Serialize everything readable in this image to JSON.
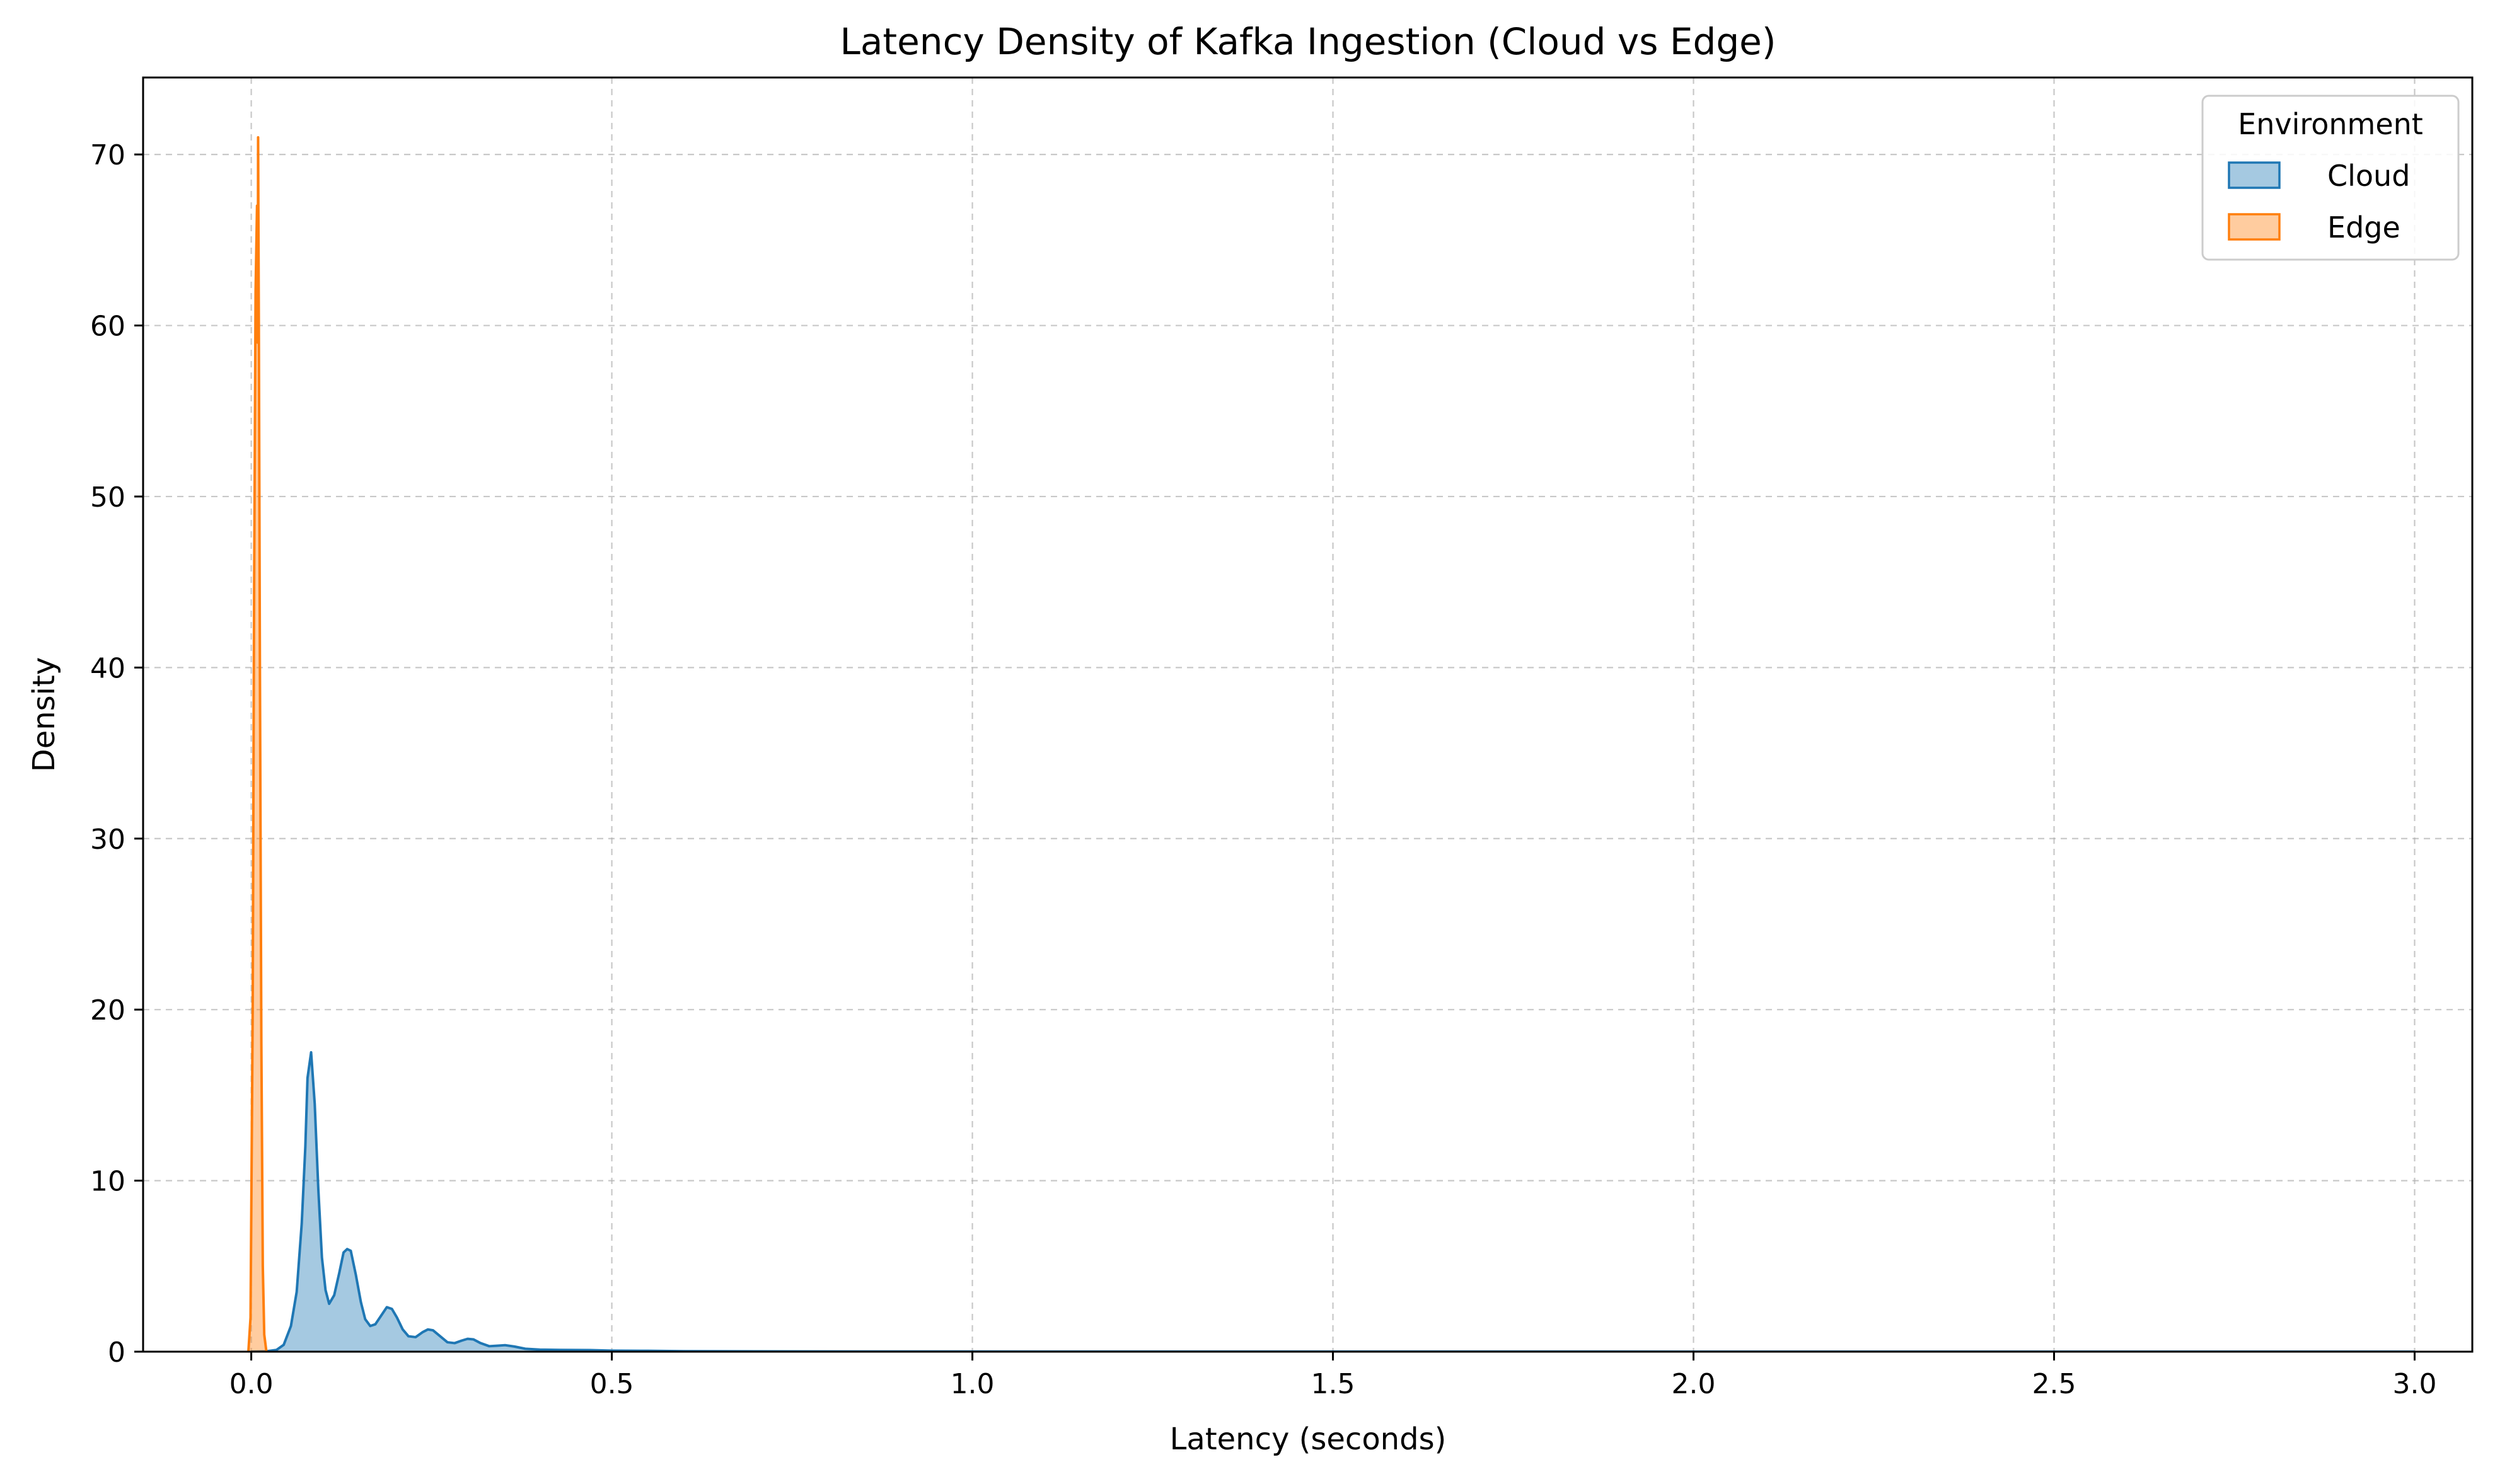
{
  "chart_data": {
    "type": "area",
    "title": "Latency Density of Kafka Ingestion (Cloud vs Edge)",
    "xlabel": "Latency (seconds)",
    "ylabel": "Density",
    "xlim": [
      -0.15,
      3.08
    ],
    "ylim": [
      0,
      74.5
    ],
    "xticks": [
      0.0,
      0.5,
      1.0,
      1.5,
      2.0,
      2.5,
      3.0
    ],
    "xtick_labels": [
      "0.0",
      "0.5",
      "1.0",
      "1.5",
      "2.0",
      "2.5",
      "3.0"
    ],
    "yticks": [
      0,
      10,
      20,
      30,
      40,
      50,
      60,
      70
    ],
    "ytick_labels": [
      "0",
      "10",
      "20",
      "30",
      "40",
      "50",
      "60",
      "70"
    ],
    "grid": true,
    "legend": {
      "title": "Environment",
      "placement": "top-right"
    },
    "series": [
      {
        "name": "Cloud",
        "color": "#1f77b4",
        "points": [
          [
            0.0,
            0
          ],
          [
            0.02,
            0.02
          ],
          [
            0.035,
            0.1
          ],
          [
            0.045,
            0.4
          ],
          [
            0.055,
            1.5
          ],
          [
            0.063,
            3.5
          ],
          [
            0.07,
            7.5
          ],
          [
            0.075,
            12.0
          ],
          [
            0.078,
            16.0
          ],
          [
            0.083,
            17.5
          ],
          [
            0.088,
            14.5
          ],
          [
            0.093,
            9.5
          ],
          [
            0.098,
            5.5
          ],
          [
            0.103,
            3.6
          ],
          [
            0.108,
            2.8
          ],
          [
            0.115,
            3.3
          ],
          [
            0.122,
            4.6
          ],
          [
            0.128,
            5.8
          ],
          [
            0.133,
            6.0
          ],
          [
            0.138,
            5.9
          ],
          [
            0.145,
            4.5
          ],
          [
            0.152,
            2.9
          ],
          [
            0.158,
            1.9
          ],
          [
            0.165,
            1.5
          ],
          [
            0.172,
            1.6
          ],
          [
            0.18,
            2.1
          ],
          [
            0.188,
            2.6
          ],
          [
            0.195,
            2.5
          ],
          [
            0.202,
            2.0
          ],
          [
            0.21,
            1.3
          ],
          [
            0.218,
            0.9
          ],
          [
            0.228,
            0.85
          ],
          [
            0.238,
            1.15
          ],
          [
            0.245,
            1.3
          ],
          [
            0.252,
            1.25
          ],
          [
            0.262,
            0.9
          ],
          [
            0.272,
            0.55
          ],
          [
            0.282,
            0.5
          ],
          [
            0.292,
            0.65
          ],
          [
            0.3,
            0.75
          ],
          [
            0.308,
            0.72
          ],
          [
            0.318,
            0.5
          ],
          [
            0.33,
            0.32
          ],
          [
            0.342,
            0.35
          ],
          [
            0.352,
            0.38
          ],
          [
            0.365,
            0.3
          ],
          [
            0.38,
            0.17
          ],
          [
            0.4,
            0.12
          ],
          [
            0.43,
            0.1
          ],
          [
            0.47,
            0.09
          ],
          [
            0.5,
            0.06
          ],
          [
            0.55,
            0.05
          ],
          [
            0.6,
            0.03
          ],
          [
            0.7,
            0.02
          ],
          [
            0.85,
            0.01
          ],
          [
            1.2,
            0.005
          ],
          [
            2.0,
            0.002
          ],
          [
            3.0,
            0.0
          ]
        ]
      },
      {
        "name": "Edge",
        "color": "#ff7f0e",
        "points": [
          [
            -0.004,
            0
          ],
          [
            -0.001,
            2.0
          ],
          [
            0.002,
            20.0
          ],
          [
            0.004,
            45.0
          ],
          [
            0.006,
            62.0
          ],
          [
            0.008,
            67.0
          ],
          [
            0.009,
            59.0
          ],
          [
            0.0095,
            71.0
          ],
          [
            0.0105,
            60.0
          ],
          [
            0.012,
            40.0
          ],
          [
            0.014,
            18.0
          ],
          [
            0.016,
            5.0
          ],
          [
            0.018,
            1.0
          ],
          [
            0.021,
            0
          ]
        ]
      }
    ]
  }
}
